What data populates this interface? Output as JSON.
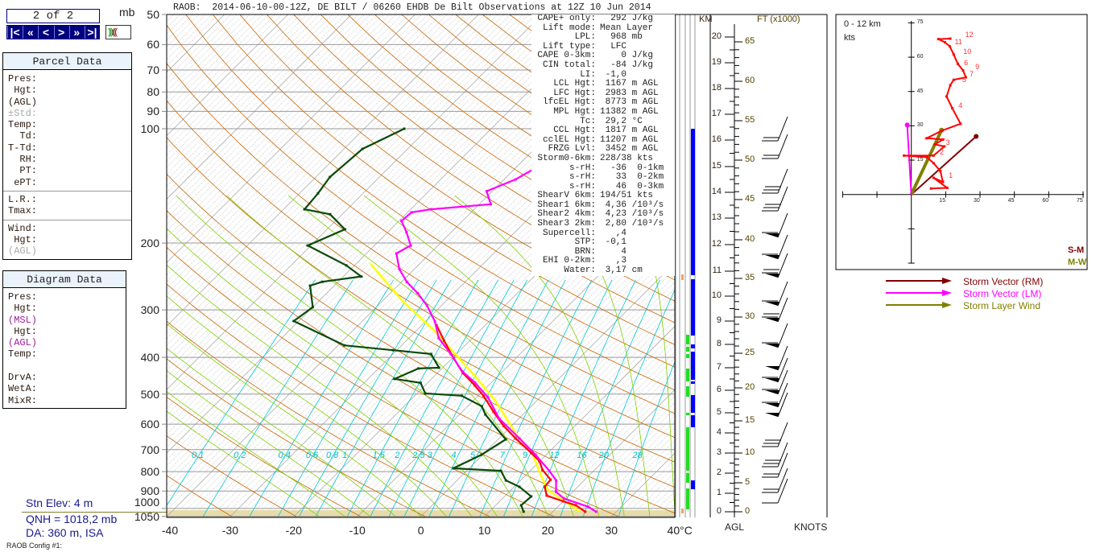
{
  "title": "RAOB:  2014-06-10-00-12Z, DE BILT / 06260 EHDB De Bilt Observations at 12Z 10 Jun 2014",
  "pager": {
    "text": "2 of 2",
    "buttons": [
      "|<",
      "«",
      "<",
      ">",
      "»",
      ">|"
    ],
    "unit": "mb"
  },
  "parcel_panel": {
    "title": "Parcel Data",
    "rows": [
      "Pres:",
      " Hgt:",
      "(AGL)",
      "±Std:",
      "Temp:",
      "  Td:",
      "T-Td:",
      "  RH:",
      "  PT:",
      " ePT:"
    ],
    "rows2": [
      "L.R.:",
      "Tmax:"
    ],
    "rows3": [
      "Wind:",
      " Hgt:",
      "(AGL)"
    ]
  },
  "diagram_panel": {
    "title": "Diagram Data",
    "rows": [
      "Pres:",
      " Hgt:",
      "(MSL)",
      " Hgt:",
      "(AGL)",
      "Temp:",
      "",
      "DrvA:",
      "WetA:",
      "MixR:"
    ]
  },
  "station": {
    "elev": "Stn Elev: 4 m",
    "qnh": "QNH = 1018,2 mb",
    "da": "DA: 360 m, ISA",
    "config": "RAOB Config #1:"
  },
  "params": [
    [
      "CAPE+ only:",
      "  292 J/kg"
    ],
    [
      "Lift mode:",
      "Mean Layer"
    ],
    [
      "LPL:",
      "  968 mb"
    ],
    [
      "Lift type:",
      "  LFC"
    ],
    [
      "CAPE 0-3km:",
      "    0 J/kg"
    ],
    [
      "CIN total:",
      "  -84 J/kg"
    ],
    [
      "LI:",
      " -1,0"
    ],
    [
      "LCL Hgt:",
      " 1167 m AGL"
    ],
    [
      "LFC Hgt:",
      " 2983 m AGL"
    ],
    [
      "lfcEL Hgt:",
      " 8773 m AGL"
    ],
    [
      "MPL Hgt:",
      "11382 m AGL"
    ],
    [
      "Tc:",
      " 29,2 °C"
    ],
    [
      "CCL Hgt:",
      " 1817 m AGL"
    ],
    [
      "cclEL Hgt:",
      "11207 m AGL"
    ],
    [
      "FRZG Lvl:",
      " 3452 m AGL"
    ],
    [
      "Storm0-6km:",
      "228/38 kts"
    ],
    [
      "s-rH:",
      "  -36  0-1km"
    ],
    [
      "s-rH:",
      "   33  0-2km"
    ],
    [
      "s-rH:",
      "   46  0-3km"
    ],
    [
      "ShearV 6km:",
      "194/51 kts"
    ],
    [
      "Shear1 6km:",
      " 4,36 /10³/s"
    ],
    [
      "Shear2 4km:",
      " 4,23 /10³/s"
    ],
    [
      "Shear3 2km:",
      " 2,80 /10³/s"
    ],
    [
      "Supercell:",
      "   ,4"
    ],
    [
      "STP:",
      " -0,1"
    ],
    [
      "BRN:",
      "    4"
    ],
    [
      "EHI 0-2km:",
      "   ,3"
    ],
    [
      "Water:",
      " 3,17 cm"
    ]
  ],
  "right_axis": {
    "km_title": "KM",
    "ft_title": "FT (x1000)",
    "agl": "AGL",
    "knots": "KNOTS",
    "km_labels": [
      "0",
      "1",
      "2",
      "3",
      "4",
      "5",
      "6",
      "7",
      "8",
      "9",
      "10",
      "11",
      "12",
      "13",
      "14",
      "15",
      "16",
      "17",
      "18",
      "19",
      "20"
    ],
    "ft_labels": [
      "0",
      "5",
      "10",
      "15",
      "20",
      "25",
      "30",
      "35",
      "40",
      "45",
      "50",
      "55",
      "60",
      "65"
    ]
  },
  "chart_data": [
    {
      "type": "line",
      "title": "",
      "xlabel": "",
      "ylabel": "mb",
      "x_unit": "°C",
      "ylog": true,
      "xlim": [
        -40,
        40
      ],
      "ylim": [
        1050,
        50
      ],
      "pressure_ticks": [
        "50",
        "60",
        "70",
        "80",
        "90",
        "100",
        "200",
        "300",
        "400",
        "500",
        "600",
        "700",
        "800",
        "900",
        "1000",
        "1050"
      ],
      "temp_ticks": [
        "-40",
        "-30",
        "-20",
        "-10",
        "0",
        "10",
        "20",
        "30",
        "40°C"
      ],
      "mixing_ratio_labels": [
        "0,1",
        "0,2",
        "0,4",
        "0,6",
        "0,8",
        "1",
        "1,5",
        "2",
        "2,5",
        "3",
        "4",
        "5",
        "7",
        "9",
        "12",
        "16",
        "20",
        "28"
      ],
      "colors": {
        "temperature": "#ff0000",
        "dewpoint": "#0a4a0a",
        "virtual": "#ff00ff",
        "parcel": "#ffff00",
        "dry_adiabat": "#c86400",
        "moist_adiabat": "#80d000",
        "mixing_ratio": "#00c8d8",
        "isobar": "#999999"
      },
      "series": [
        {
          "key": "dewpoint",
          "p": [
            1020,
            981,
            930,
            877,
            844,
            796,
            784,
            722,
            658,
            566,
            538,
            505,
            498,
            467,
            456,
            428,
            426,
            392,
            383,
            372,
            321,
            295,
            259,
            253,
            245,
            229,
            203,
            184,
            168,
            163,
            148,
            134,
            113,
            100
          ],
          "t": [
            15.4,
            14.0,
            14.2,
            10.8,
            7.7,
            5.4,
            -2.5,
            -0.2,
            1.2,
            -5.9,
            -7.8,
            -12.6,
            -18.7,
            -21.1,
            -25.8,
            -23.7,
            -20.6,
            -24.0,
            -30.6,
            -39.0,
            -50.8,
            -50.0,
            -53.8,
            -52.5,
            -47.2,
            -51.3,
            -60.5,
            -57.2,
            -61.9,
            -66.7,
            -67.1,
            -67.8,
            -67.1,
            -63.7
          ]
        },
        {
          "key": "virtual",
          "p": [
            1020,
            990,
            942,
            905,
            844,
            796,
            722,
            654,
            580,
            510,
            466,
            435,
            392,
            356,
            322,
            292,
            271,
            253,
            234,
            213,
            203,
            187,
            175,
            166,
            163,
            158,
            146,
            136,
            122,
            108,
            100
          ],
          "t": [
            26.8,
            24.8,
            19.7,
            17.4,
            15.6,
            13.0,
            8.3,
            3.2,
            -3.1,
            -8.2,
            -12.6,
            -16.4,
            -20.9,
            -25.3,
            -28.5,
            -32.3,
            -35.7,
            -39.2,
            -42.4,
            -45.3,
            -44.3,
            -47.1,
            -49.6,
            -49.4,
            -46.8,
            -38.2,
            -40.9,
            -38.2,
            -36.1,
            -34.2,
            -32.9
          ]
        },
        {
          "key": "temperature",
          "p": [
            1020,
            981,
            958,
            925,
            877,
            840,
            792,
            750,
            715,
            654,
            607,
            556,
            506,
            474,
            440,
            402,
            362,
            329
          ],
          "t": [
            25.1,
            22.6,
            20.0,
            16.5,
            14.8,
            14.6,
            11.8,
            9.9,
            7.4,
            2.6,
            -1.2,
            -5.1,
            -9.1,
            -12.2,
            -16.0,
            -19.8,
            -24.0,
            -27.7
          ]
        },
        {
          "key": "parcel",
          "p": [
            1020,
            896,
            816,
            722,
            637,
            523,
            451,
            392,
            340,
            285,
            227
          ],
          "t": [
            24.3,
            15.9,
            12.3,
            7.9,
            2.0,
            -6.3,
            -13.3,
            -20.2,
            -27.2,
            -36.7,
            -47.7
          ]
        }
      ]
    },
    {
      "type": "line",
      "title": "0 - 12 km",
      "ylabel": "kts",
      "xlim": [
        -30,
        75
      ],
      "ylim": [
        -30,
        75
      ],
      "ticks": [
        "15",
        "30",
        "45",
        "60",
        "75"
      ],
      "hodograph": {
        "u": [
          8.6,
          15.6,
          9.7,
          13.8,
          12.7,
          9.7,
          6.8,
          -3.2,
          9.7,
          14.4,
          10.3,
          13.8,
          6.8,
          13.2,
          21.5,
          17.9,
          15.4,
          17.0,
          18.5,
          23.8,
          22.6,
          20.3,
          18.5,
          16.8,
          14.7,
          11.8,
          17.0
        ],
        "v": [
          2.6,
          2.9,
          7.3,
          5.5,
          10.2,
          13.7,
          16.3,
          17.0,
          17.0,
          21.0,
          21.9,
          24.0,
          24.6,
          27.8,
          30.9,
          37.7,
          42.8,
          47.7,
          50.1,
          51.2,
          54.2,
          57.1,
          61.2,
          64.7,
          66.5,
          67.9,
          68.1
        ]
      },
      "height_labels": [
        {
          "text": "1",
          "u": 15.6,
          "v": 8.2
        },
        {
          "text": "2",
          "u": 11.7,
          "v": 18.4
        },
        {
          "text": "3",
          "u": 14.4,
          "v": 22.7
        },
        {
          "text": "4",
          "u": 19.9,
          "v": 38.9
        },
        {
          "text": "5",
          "u": 21.5,
          "v": 50.3
        },
        {
          "text": "7",
          "u": 20.5,
          "v": 52.6
        },
        {
          "text": "6",
          "u": 22.3,
          "v": 57.4
        },
        {
          "text": "9",
          "u": 24.4,
          "v": 55.9
        },
        {
          "text": "10",
          "u": 22.0,
          "v": 62.4
        },
        {
          "text": "11",
          "u": 18.2,
          "v": 66.8
        },
        {
          "text": "12",
          "u": 20.0,
          "v": 69.8
        }
      ],
      "vectors": [
        {
          "name": "Storm Vector (RM)",
          "u": 28.3,
          "v": 25.4,
          "color": "#800000"
        },
        {
          "name": "Storm Vector (LM)",
          "u": -1.8,
          "v": 30.4,
          "color": "#ff00ff"
        },
        {
          "name": "Storm Layer Wind",
          "u": 13.2,
          "v": 28.1,
          "color": "#808000"
        }
      ],
      "corner_labels": [
        {
          "text": "S-M",
          "color": "#800000"
        },
        {
          "text": "M-W",
          "color": "#808000"
        }
      ]
    }
  ]
}
